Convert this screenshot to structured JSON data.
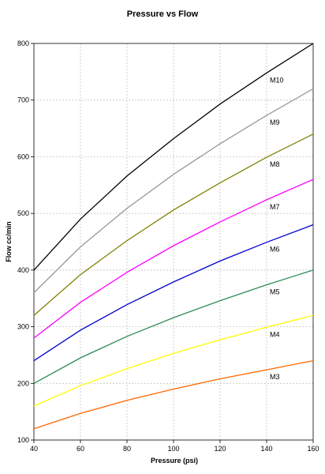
{
  "chart_data": {
    "type": "line",
    "title": "Pressure vs Flow",
    "xlabel": "Pressure (psi)",
    "ylabel": "Flow cc/min",
    "xlim": [
      40,
      160
    ],
    "ylim": [
      100,
      800
    ],
    "xticks": [
      40,
      60,
      80,
      100,
      120,
      140,
      160
    ],
    "yticks": [
      100,
      200,
      300,
      400,
      500,
      600,
      700,
      800
    ],
    "grid": true,
    "x": [
      40,
      60,
      80,
      100,
      120,
      140,
      160
    ],
    "series": [
      {
        "name": "M10",
        "color": "#000000",
        "values": [
          400,
          490,
          566,
          632,
          693,
          748,
          800
        ]
      },
      {
        "name": "M9",
        "color": "#999999",
        "values": [
          360,
          441,
          509,
          569,
          623,
          673,
          720
        ]
      },
      {
        "name": "M8",
        "color": "#808000",
        "values": [
          320,
          392,
          452,
          506,
          554,
          599,
          640
        ]
      },
      {
        "name": "M7",
        "color": "#ff00ff",
        "values": [
          280,
          343,
          396,
          443,
          485,
          524,
          560
        ]
      },
      {
        "name": "M6",
        "color": "#0000cc",
        "values": [
          240,
          294,
          339,
          379,
          416,
          449,
          480
        ]
      },
      {
        "name": "M5",
        "color": "#2e8b57",
        "values": [
          200,
          245,
          283,
          316,
          346,
          374,
          400
        ]
      },
      {
        "name": "M4",
        "color": "#ffff00",
        "values": [
          160,
          196,
          226,
          253,
          277,
          299,
          320
        ]
      },
      {
        "name": "M3",
        "color": "#ff6600",
        "values": [
          120,
          147,
          170,
          190,
          208,
          224,
          240
        ]
      }
    ]
  }
}
